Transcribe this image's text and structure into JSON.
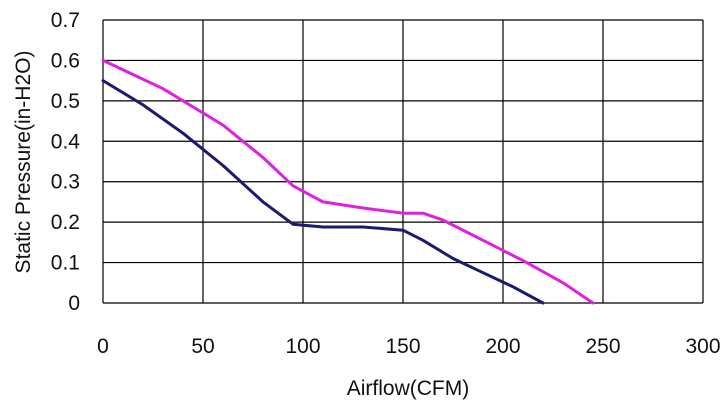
{
  "chart_data": {
    "type": "line",
    "title": "",
    "xlabel": "Airflow(CFM)",
    "ylabel": "Static Pressure(in-H2O)",
    "xlim": [
      0,
      300
    ],
    "ylim": [
      0,
      0.7
    ],
    "x_ticks": [
      0,
      50,
      100,
      150,
      200,
      250,
      300
    ],
    "y_ticks": [
      0,
      0.1,
      0.2,
      0.3,
      0.4,
      0.5,
      0.6,
      0.7
    ],
    "x_tick_labels": [
      "0",
      "50",
      "100",
      "150",
      "200",
      "250",
      "300"
    ],
    "y_tick_labels": [
      "0",
      "0.1",
      "0.2",
      "0.3",
      "0.4",
      "0.5",
      "0.6",
      "0.7"
    ],
    "grid": true,
    "legend": "none",
    "series": [
      {
        "color": "#e020e0",
        "x": [
          0,
          30,
          60,
          80,
          95,
          110,
          130,
          150,
          160,
          170,
          190,
          210,
          230,
          245
        ],
        "y": [
          0.6,
          0.53,
          0.44,
          0.36,
          0.29,
          0.25,
          0.235,
          0.222,
          0.222,
          0.205,
          0.155,
          0.105,
          0.05,
          0.0
        ]
      },
      {
        "color": "#1a1a6e",
        "x": [
          0,
          20,
          40,
          60,
          80,
          95,
          110,
          130,
          150,
          160,
          175,
          190,
          205,
          220
        ],
        "y": [
          0.55,
          0.49,
          0.42,
          0.34,
          0.25,
          0.195,
          0.188,
          0.188,
          0.18,
          0.155,
          0.11,
          0.075,
          0.04,
          0.0
        ]
      }
    ]
  }
}
